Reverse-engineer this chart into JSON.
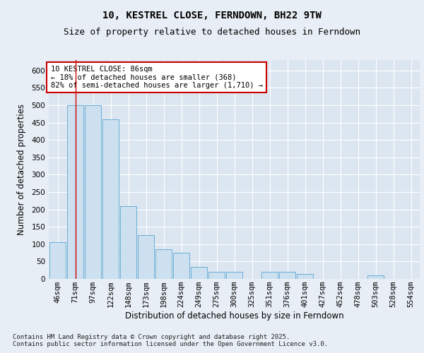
{
  "title1": "10, KESTREL CLOSE, FERNDOWN, BH22 9TW",
  "title2": "Size of property relative to detached houses in Ferndown",
  "xlabel": "Distribution of detached houses by size in Ferndown",
  "ylabel": "Number of detached properties",
  "categories": [
    "46sqm",
    "71sqm",
    "97sqm",
    "122sqm",
    "148sqm",
    "173sqm",
    "198sqm",
    "224sqm",
    "249sqm",
    "275sqm",
    "300sqm",
    "325sqm",
    "351sqm",
    "376sqm",
    "401sqm",
    "427sqm",
    "452sqm",
    "478sqm",
    "503sqm",
    "528sqm",
    "554sqm"
  ],
  "values": [
    105,
    500,
    500,
    460,
    210,
    125,
    85,
    75,
    35,
    20,
    20,
    0,
    20,
    20,
    15,
    0,
    0,
    0,
    10,
    0,
    0
  ],
  "bar_color": "#cce0f0",
  "bar_edge_color": "#6aaed6",
  "vline_x": 1,
  "vline_color": "#cc0000",
  "annotation_text": "10 KESTREL CLOSE: 86sqm\n← 18% of detached houses are smaller (368)\n82% of semi-detached houses are larger (1,710) →",
  "annotation_box_color": "#ffffff",
  "annotation_box_edge": "#cc0000",
  "footnote": "Contains HM Land Registry data © Crown copyright and database right 2025.\nContains public sector information licensed under the Open Government Licence v3.0.",
  "ylim": [
    0,
    630
  ],
  "yticks": [
    0,
    50,
    100,
    150,
    200,
    250,
    300,
    350,
    400,
    450,
    500,
    550,
    600
  ],
  "bg_color": "#e8eef5",
  "plot_bg_color": "#dce6f0",
  "grid_color": "#ffffff",
  "title_fontsize": 10,
  "subtitle_fontsize": 9,
  "tick_fontsize": 7.5,
  "label_fontsize": 8.5,
  "annot_fontsize": 7.5,
  "footnote_fontsize": 6.5
}
